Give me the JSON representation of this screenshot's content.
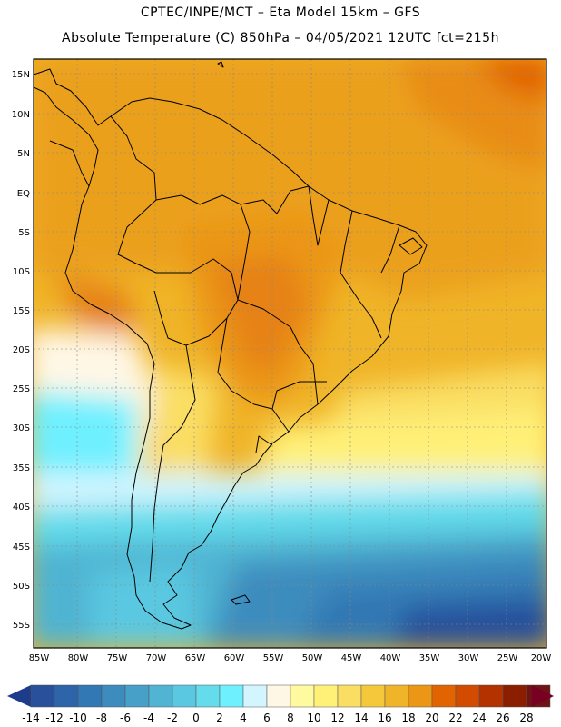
{
  "header": {
    "line1": "CPTEC/INPE/MCT –  Eta Model 15km – GFS",
    "line2": "Absolute Temperature (C) 850hPa – 04/05/2021 12UTC fct=215h"
  },
  "axes": {
    "lat_labels": [
      "15N",
      "10N",
      "5N",
      "EQ",
      "5S",
      "10S",
      "15S",
      "20S",
      "25S",
      "30S",
      "35S",
      "40S",
      "45S",
      "50S",
      "55S"
    ],
    "lon_labels": [
      "85W",
      "80W",
      "75W",
      "70W",
      "65W",
      "60W",
      "55W",
      "50W",
      "45W",
      "40W",
      "35W",
      "30W",
      "25W",
      "20W"
    ]
  },
  "colorbar": {
    "labels": [
      "-14",
      "-12",
      "-10",
      "-8",
      "-6",
      "-4",
      "-2",
      "0",
      "2",
      "4",
      "6",
      "8",
      "10",
      "12",
      "14",
      "16",
      "18",
      "20",
      "22",
      "24",
      "26",
      "28"
    ],
    "colors": [
      "#1e3c8c",
      "#28509b",
      "#2d64aa",
      "#3278b4",
      "#3c8cbe",
      "#46a0c8",
      "#50b4d2",
      "#5ac8e1",
      "#64dceb",
      "#6ef0ff",
      "#d2f5ff",
      "#fff7e6",
      "#fffaa0",
      "#fff078",
      "#fade64",
      "#f5c83c",
      "#f0b428",
      "#eb9614",
      "#e16400",
      "#d24b00",
      "#b43200",
      "#8c1e00",
      "#6e1414",
      "#780023"
    ]
  },
  "style": {
    "map_frame": "#000000",
    "grid": "#888888"
  }
}
